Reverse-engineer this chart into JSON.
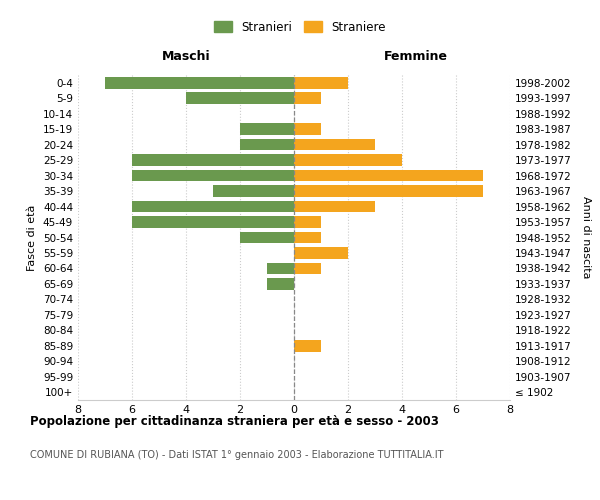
{
  "age_groups": [
    "100+",
    "95-99",
    "90-94",
    "85-89",
    "80-84",
    "75-79",
    "70-74",
    "65-69",
    "60-64",
    "55-59",
    "50-54",
    "45-49",
    "40-44",
    "35-39",
    "30-34",
    "25-29",
    "20-24",
    "15-19",
    "10-14",
    "5-9",
    "0-4"
  ],
  "birth_years": [
    "≤ 1902",
    "1903-1907",
    "1908-1912",
    "1913-1917",
    "1918-1922",
    "1923-1927",
    "1928-1932",
    "1933-1937",
    "1938-1942",
    "1943-1947",
    "1948-1952",
    "1953-1957",
    "1958-1962",
    "1963-1967",
    "1968-1972",
    "1973-1977",
    "1978-1982",
    "1983-1987",
    "1988-1992",
    "1993-1997",
    "1998-2002"
  ],
  "maschi": [
    0,
    0,
    0,
    0,
    0,
    0,
    0,
    1,
    1,
    0,
    2,
    6,
    6,
    3,
    6,
    6,
    2,
    2,
    0,
    4,
    7
  ],
  "femmine": [
    0,
    0,
    0,
    1,
    0,
    0,
    0,
    0,
    1,
    2,
    1,
    1,
    3,
    7,
    7,
    4,
    3,
    1,
    0,
    1,
    2
  ],
  "maschi_color": "#6a994e",
  "femmine_color": "#f4a51e",
  "title": "Popolazione per cittadinanza straniera per età e sesso - 2003",
  "subtitle": "COMUNE DI RUBIANA (TO) - Dati ISTAT 1° gennaio 2003 - Elaborazione TUTTITALIA.IT",
  "label_maschi": "Maschi",
  "label_femmine": "Femmine",
  "ylabel_left": "Fasce di età",
  "ylabel_right": "Anni di nascita",
  "legend_stranieri": "Stranieri",
  "legend_straniere": "Straniere",
  "xlim": 8,
  "background_color": "#ffffff",
  "grid_color": "#cccccc",
  "bar_height": 0.75
}
